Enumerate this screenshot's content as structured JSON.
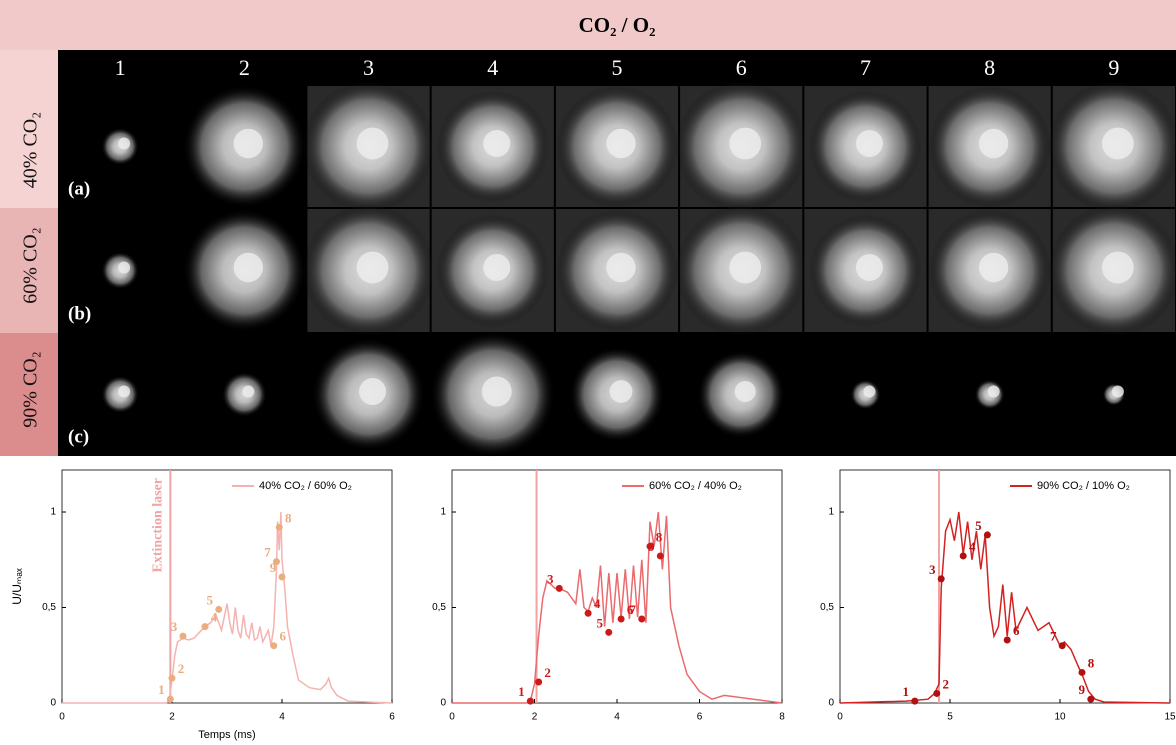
{
  "figure": {
    "header": "CO₂ / O₂",
    "columns": [
      1,
      2,
      3,
      4,
      5,
      6,
      7,
      8,
      9
    ],
    "rows": [
      {
        "label": "40% CO₂",
        "tag": "(a)"
      },
      {
        "label": "60% CO₂",
        "tag": "(b)"
      },
      {
        "label": "90% CO₂",
        "tag": "(c)"
      }
    ]
  },
  "chart_data": [
    {
      "type": "line",
      "xlabel": "Temps (ms)",
      "ylabel": "U/Uₘₐₓ",
      "legend": "top-right",
      "xlim": [
        0,
        6
      ],
      "xticks": [
        0,
        2,
        4,
        6
      ],
      "ylim": [
        0,
        1.22
      ],
      "yticks": [
        0,
        {
          "value": 0.5,
          "label": "0,5"
        },
        1
      ],
      "vline": {
        "x": 1.97,
        "color": "#f2a3a3",
        "label": "Extinction laser"
      },
      "series": [
        {
          "name": "40% CO₂ / 60% O₂",
          "color": "#f4b3b0",
          "x": [
            0,
            1.9,
            1.95,
            2.0,
            2.05,
            2.1,
            2.2,
            2.3,
            2.4,
            2.5,
            2.6,
            2.7,
            2.8,
            2.9,
            3.0,
            3.05,
            3.1,
            3.15,
            3.2,
            3.25,
            3.3,
            3.35,
            3.4,
            3.45,
            3.5,
            3.55,
            3.6,
            3.65,
            3.7,
            3.75,
            3.8,
            3.85,
            3.9,
            3.92,
            3.95,
            3.98,
            4.0,
            4.05,
            4.1,
            4.2,
            4.3,
            4.5,
            4.7,
            4.8,
            4.85,
            4.9,
            5.0,
            5.2,
            6
          ],
          "values": [
            0,
            0,
            0.02,
            0.12,
            0.25,
            0.32,
            0.34,
            0.33,
            0.34,
            0.37,
            0.4,
            0.42,
            0.46,
            0.38,
            0.52,
            0.42,
            0.36,
            0.5,
            0.38,
            0.34,
            0.46,
            0.36,
            0.34,
            0.42,
            0.33,
            0.34,
            0.4,
            0.32,
            0.35,
            0.38,
            0.3,
            0.4,
            0.7,
            0.95,
            0.8,
            1.0,
            0.75,
            0.6,
            0.4,
            0.25,
            0.12,
            0.08,
            0.07,
            0.1,
            0.13,
            0.08,
            0.04,
            0.01,
            0
          ]
        }
      ],
      "points": {
        "color": "#e9ad80",
        "x": [
          1.97,
          2.0,
          2.2,
          2.6,
          2.85,
          3.85,
          3.9,
          3.95,
          4.0
        ],
        "values": [
          0.02,
          0.13,
          0.35,
          0.4,
          0.49,
          0.3,
          0.74,
          0.92,
          0.66
        ],
        "labels": [
          1,
          2,
          3,
          4,
          5,
          6,
          7,
          8,
          9
        ]
      }
    },
    {
      "type": "line",
      "legend": "top-right",
      "xlim": [
        0,
        8
      ],
      "xticks": [
        0,
        2,
        4,
        6,
        8
      ],
      "ylim": [
        0,
        1.22
      ],
      "yticks": [
        0,
        {
          "value": 0.5,
          "label": "0,5"
        },
        1
      ],
      "vline": {
        "x": 2.05,
        "color": "#f2a3a3"
      },
      "series": [
        {
          "name": "60% CO₂ / 40% O₂",
          "color": "#ea6a6e",
          "x": [
            0,
            1.8,
            1.9,
            2.0,
            2.1,
            2.2,
            2.3,
            2.4,
            2.5,
            2.6,
            2.8,
            3.0,
            3.1,
            3.2,
            3.3,
            3.4,
            3.5,
            3.6,
            3.7,
            3.8,
            3.9,
            4.0,
            4.1,
            4.2,
            4.3,
            4.4,
            4.5,
            4.6,
            4.7,
            4.8,
            4.9,
            5.0,
            5.1,
            5.2,
            5.3,
            5.5,
            5.7,
            6.0,
            6.3,
            6.6,
            8
          ],
          "values": [
            0,
            0,
            0.01,
            0.1,
            0.35,
            0.55,
            0.64,
            0.62,
            0.6,
            0.6,
            0.58,
            0.52,
            0.7,
            0.5,
            0.48,
            0.55,
            0.5,
            0.72,
            0.4,
            0.68,
            0.42,
            0.68,
            0.45,
            0.7,
            0.44,
            0.72,
            0.45,
            0.75,
            0.42,
            0.95,
            0.82,
            1.0,
            0.7,
            0.98,
            0.5,
            0.3,
            0.15,
            0.06,
            0.02,
            0.04,
            0
          ]
        }
      ],
      "points": {
        "color": "#cc1a1a",
        "x": [
          1.9,
          2.1,
          2.6,
          3.3,
          3.8,
          4.1,
          4.6,
          4.8,
          5.05
        ],
        "values": [
          0.01,
          0.11,
          0.6,
          0.47,
          0.37,
          0.44,
          0.44,
          0.82,
          0.77
        ],
        "labels": [
          1,
          2,
          3,
          4,
          5,
          6,
          7,
          8,
          9
        ]
      }
    },
    {
      "type": "line",
      "legend": "top-right",
      "xlim": [
        0,
        15
      ],
      "xticks": [
        0,
        5,
        10,
        15
      ],
      "ylim": [
        0,
        1.22
      ],
      "yticks": [
        0,
        {
          "value": 0.5,
          "label": "0,5"
        },
        1
      ],
      "vline": {
        "x": 4.5,
        "color": "#f2a3a3"
      },
      "series": [
        {
          "name": "90% CO₂ / 10% O₂",
          "color": "#d42222",
          "x": [
            0,
            3,
            4,
            4.3,
            4.5,
            4.6,
            4.8,
            5.0,
            5.2,
            5.4,
            5.6,
            5.8,
            6.0,
            6.2,
            6.4,
            6.6,
            6.8,
            7.0,
            7.2,
            7.4,
            7.6,
            7.8,
            8.0,
            8.5,
            9.0,
            9.5,
            10.0,
            10.2,
            10.5,
            10.8,
            11.0,
            11.3,
            11.6,
            12,
            15
          ],
          "values": [
            0,
            0.01,
            0.02,
            0.05,
            0.1,
            0.6,
            0.9,
            0.96,
            0.85,
            1.0,
            0.78,
            0.95,
            0.75,
            0.9,
            0.7,
            0.88,
            0.5,
            0.35,
            0.4,
            0.62,
            0.35,
            0.58,
            0.38,
            0.5,
            0.38,
            0.42,
            0.3,
            0.32,
            0.28,
            0.2,
            0.15,
            0.06,
            0.02,
            0.005,
            0
          ]
        }
      ],
      "points": {
        "color": "#b01010",
        "x": [
          3.4,
          4.4,
          4.6,
          5.6,
          6.7,
          7.6,
          10.1,
          11.0,
          11.4
        ],
        "values": [
          0.01,
          0.05,
          0.65,
          0.77,
          0.88,
          0.33,
          0.3,
          0.16,
          0.02
        ],
        "labels": [
          1,
          2,
          3,
          4,
          5,
          6,
          7,
          8,
          9
        ]
      }
    }
  ]
}
